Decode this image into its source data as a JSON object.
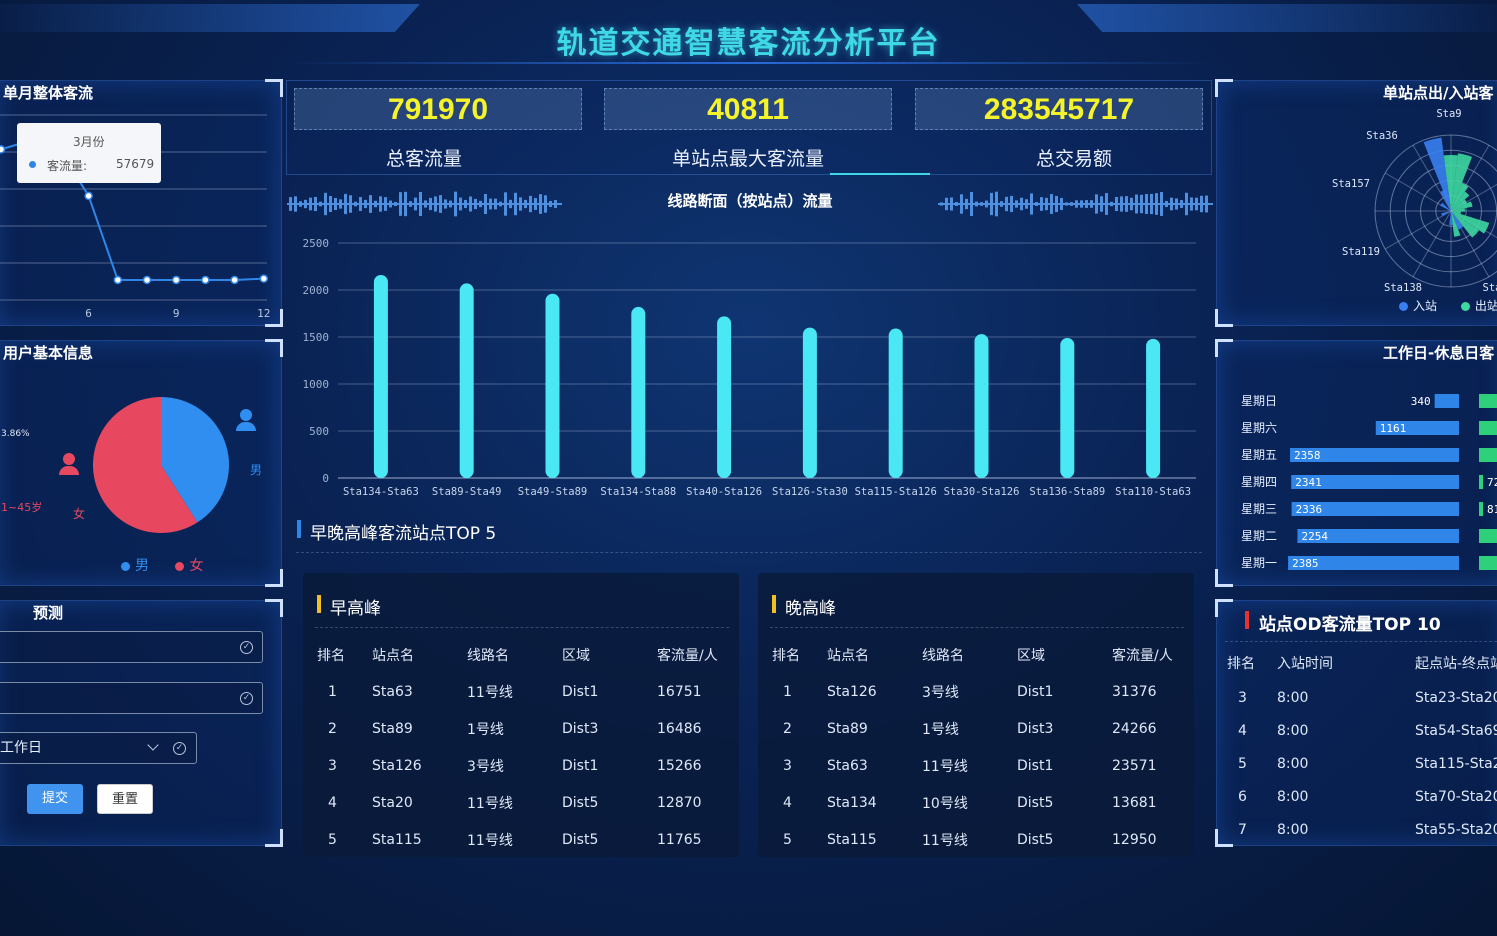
{
  "header": {
    "title": "轨道交通智慧客流分析平台"
  },
  "kpis": [
    {
      "value": "791970",
      "label": "总客流量"
    },
    {
      "value": "40811",
      "label": "单站点最大客流量"
    },
    {
      "value": "283545717",
      "label": "总交易额"
    }
  ],
  "monthly": {
    "title": "单月整体客流",
    "tooltip": {
      "month": "3月份",
      "series": "客流量:",
      "value": "57679"
    },
    "chart_data": {
      "type": "line",
      "x": [
        3,
        4,
        5,
        6,
        7,
        8,
        9,
        10,
        11,
        12
      ],
      "values": [
        57679,
        61000,
        57679,
        40000,
        8000,
        8000,
        8000,
        8000,
        8000,
        8500
      ],
      "xticks": [
        "6",
        "9",
        "12"
      ],
      "ylim": [
        0,
        70000
      ]
    },
    "colors": {
      "line": "#2f86e8"
    }
  },
  "users": {
    "title": "用户基本信息",
    "partial_pct": "3.86%",
    "partial_age": "1~45岁",
    "male_label": "男",
    "female_label": "女",
    "legend": [
      "男",
      "女"
    ],
    "chart_data": {
      "type": "pie",
      "labels": [
        "男",
        "女"
      ],
      "values": [
        41,
        59
      ]
    },
    "colors": {
      "male": "#2f8ef0",
      "female": "#e8485f"
    }
  },
  "predict": {
    "title": "预测",
    "field1": "",
    "field2": "",
    "select_value": "工作日",
    "submit": "提交",
    "reset": "重置"
  },
  "section_flow": {
    "title": "线路断面（按站点）流量",
    "chart_data": {
      "type": "bar",
      "categories": [
        "Sta134-Sta63",
        "Sta89-Sta49",
        "Sta49-Sta89",
        "Sta134-Sta88",
        "Sta40-Sta126",
        "Sta126-Sta30",
        "Sta115-Sta126",
        "Sta30-Sta126",
        "Sta136-Sta89",
        "Sta110-Sta63"
      ],
      "values": [
        2160,
        2070,
        1960,
        1820,
        1720,
        1600,
        1590,
        1530,
        1490,
        1480
      ],
      "yticks": [
        "0",
        "500",
        "1000",
        "1500",
        "2000",
        "2500"
      ],
      "ylim": [
        0,
        2500
      ]
    },
    "colors": {
      "bar": "#4ae8f5"
    }
  },
  "peak": {
    "title": "早晚高峰客流站点TOP 5",
    "headers": [
      "排名",
      "站点名",
      "线路名",
      "区域",
      "客流量/人"
    ],
    "morning": {
      "title": "早高峰",
      "rows": [
        [
          "1",
          "Sta63",
          "11号线",
          "Dist1",
          "16751"
        ],
        [
          "2",
          "Sta89",
          "1号线",
          "Dist3",
          "16486"
        ],
        [
          "3",
          "Sta126",
          "3号线",
          "Dist1",
          "15266"
        ],
        [
          "4",
          "Sta20",
          "11号线",
          "Dist5",
          "12870"
        ],
        [
          "5",
          "Sta115",
          "11号线",
          "Dist5",
          "11765"
        ]
      ]
    },
    "evening": {
      "title": "晚高峰",
      "rows": [
        [
          "1",
          "Sta126",
          "3号线",
          "Dist1",
          "31376"
        ],
        [
          "2",
          "Sta89",
          "1号线",
          "Dist3",
          "24266"
        ],
        [
          "3",
          "Sta63",
          "11号线",
          "Dist1",
          "23571"
        ],
        [
          "4",
          "Sta134",
          "10号线",
          "Dist5",
          "13681"
        ],
        [
          "5",
          "Sta115",
          "11号线",
          "Dist5",
          "12950"
        ]
      ]
    }
  },
  "station_io": {
    "title": "单站点出/入站客",
    "station_labels": [
      "Sta9",
      "Sta36",
      "Sta157",
      "Sta119",
      "Sta138",
      "Sta"
    ],
    "legend_in": "入站",
    "legend_out": "出站",
    "colors": {
      "in": "#3a7ff0",
      "out": "#3ed8a0"
    }
  },
  "weekday": {
    "title": "工作日-休息日客",
    "chart_data": {
      "type": "bar",
      "categories": [
        "星期日",
        "星期六",
        "星期五",
        "星期四",
        "星期三",
        "星期二",
        "星期一"
      ],
      "values": [
        340,
        1161,
        2358,
        2341,
        2336,
        2254,
        2385
      ],
      "right_partial": [
        "",
        "",
        "",
        "72",
        "81",
        "",
        ""
      ]
    },
    "colors": {
      "bar": "#2f86e8",
      "right": "#2fd07a"
    }
  },
  "od": {
    "title": "站点OD客流量TOP 10",
    "headers": [
      "排名",
      "入站时间",
      "起点站-终点站"
    ],
    "rows": [
      [
        "3",
        "8:00",
        "Sta23-Sta20"
      ],
      [
        "4",
        "8:00",
        "Sta54-Sta69"
      ],
      [
        "5",
        "8:00",
        "Sta115-Sta20"
      ],
      [
        "6",
        "8:00",
        "Sta70-Sta20"
      ],
      [
        "7",
        "8:00",
        "Sta55-Sta20"
      ]
    ]
  }
}
